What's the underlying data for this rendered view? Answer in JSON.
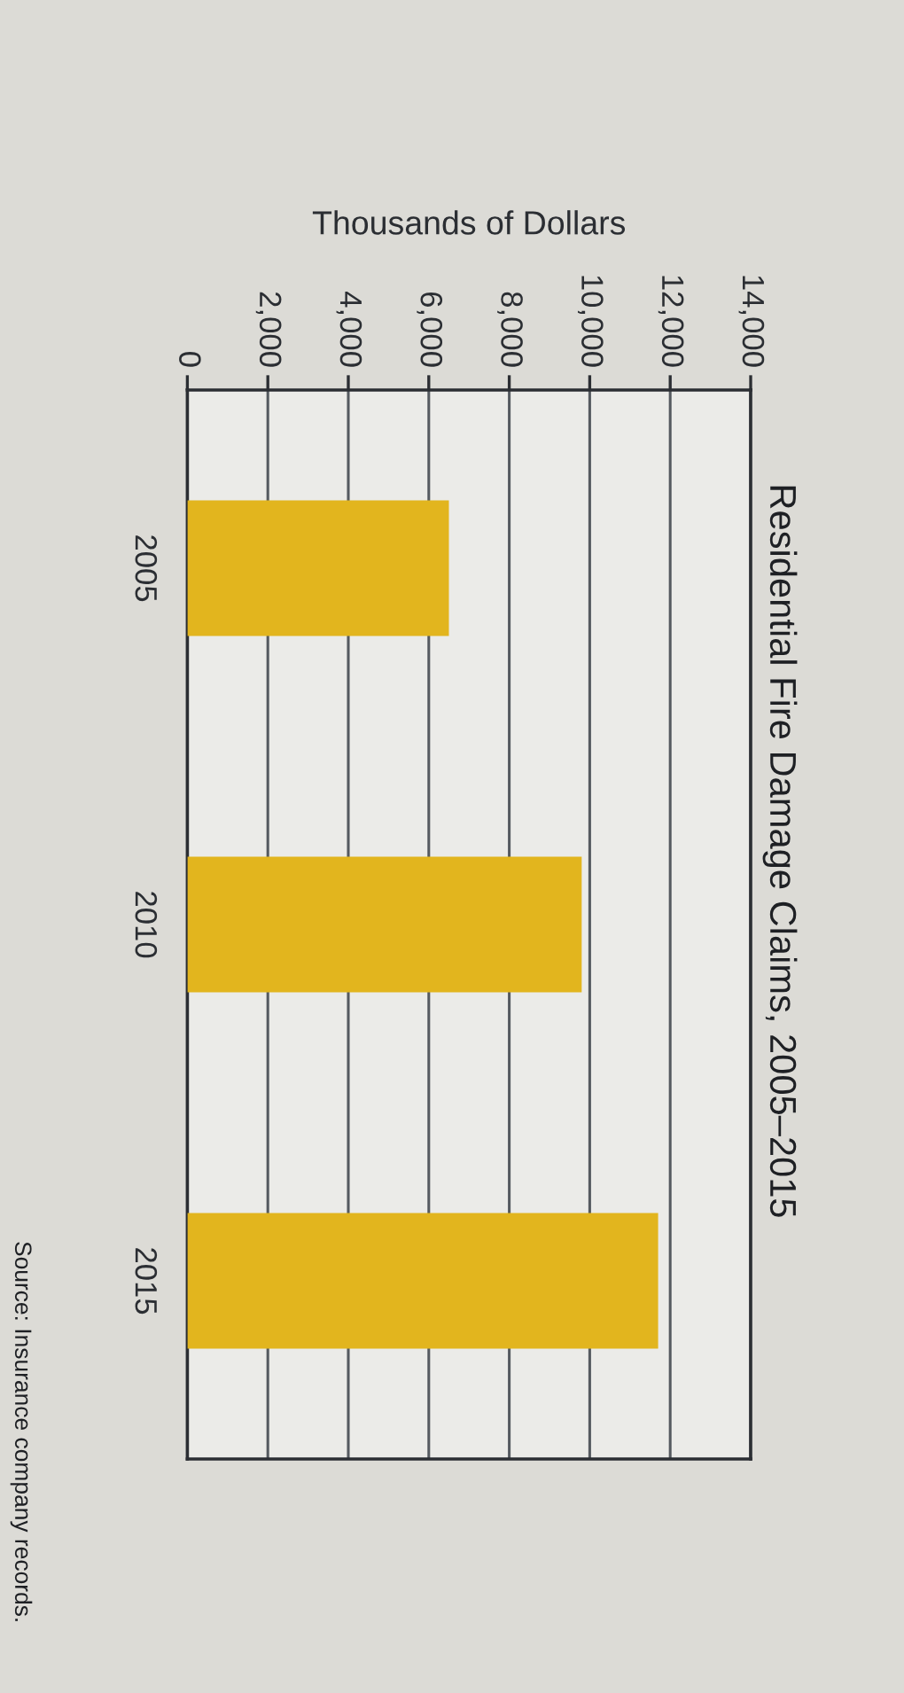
{
  "chart_data": {
    "type": "bar",
    "orientation": "horizontal",
    "title": "Residential Fire Damage Claims, 2005–2015",
    "xlabel": "Thousands of Dollars",
    "annotations": [
      "Source: Insurance company records."
    ],
    "categories": [
      "2005",
      "2010",
      "2015"
    ],
    "values": [
      6500,
      9800,
      11700
    ],
    "color": "#e2b51e",
    "xlim": [
      0,
      14000
    ],
    "xticks": [
      0,
      {
        "value": 2000,
        "label": "2,000"
      },
      {
        "value": 4000,
        "label": "4,000"
      },
      {
        "value": 6000,
        "label": "6,000"
      },
      {
        "value": 8000,
        "label": "8,000"
      },
      {
        "value": 10000,
        "label": "10,000"
      },
      {
        "value": 12000,
        "label": "12,000"
      },
      {
        "value": 14000,
        "label": "14,000"
      }
    ],
    "grid": "x"
  }
}
